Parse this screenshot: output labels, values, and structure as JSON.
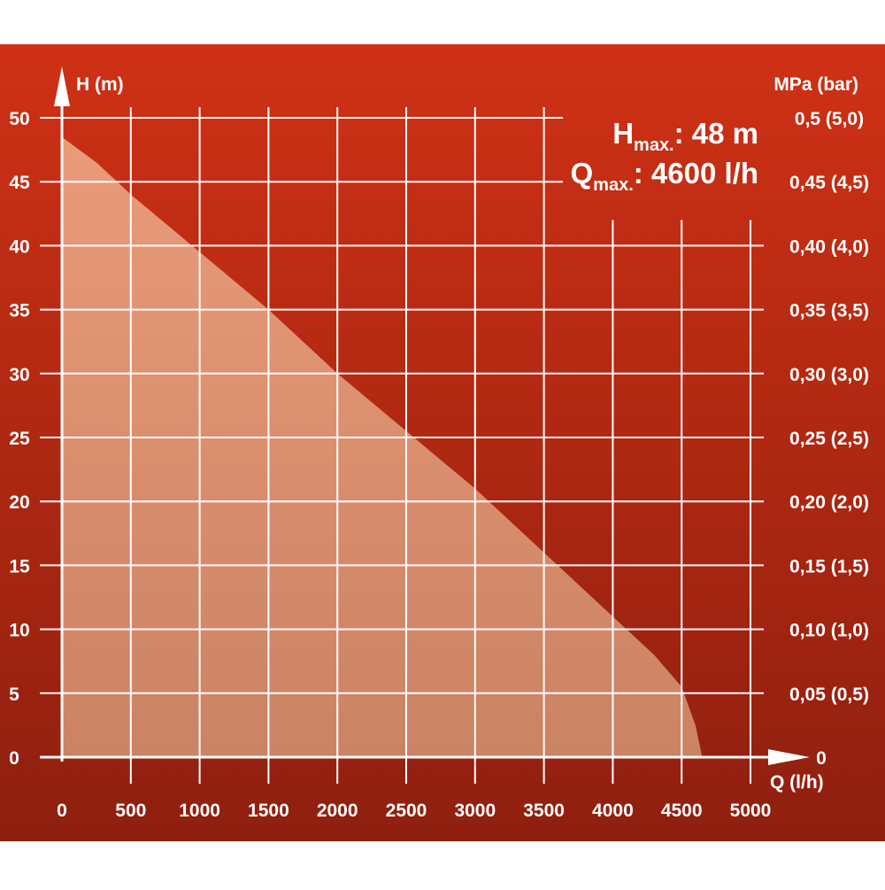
{
  "chart_data": {
    "type": "area",
    "title": "",
    "xlabel": "Q (l/h)",
    "ylabel": "H (m)",
    "y2label": "MPa (bar)",
    "xlim": [
      0,
      5000
    ],
    "ylim": [
      0,
      50
    ],
    "grid": true,
    "x_ticks": [
      "0",
      "500",
      "1000",
      "1500",
      "2000",
      "2500",
      "3000",
      "3500",
      "4000",
      "4500",
      "5000"
    ],
    "y_ticks": [
      "0",
      "5",
      "10",
      "15",
      "20",
      "25",
      "30",
      "35",
      "40",
      "45",
      "50"
    ],
    "y2_ticks": [
      "0",
      "0,05 (0,5)",
      "0,10 (1,0)",
      "0,15 (1,5)",
      "0,20 (2,0)",
      "0,25 (2,5)",
      "0,30 (3,0)",
      "0,35 (3,5)",
      "0,40 (4,0)",
      "0,45 (4,5)",
      "0,5 (5,0)"
    ],
    "series": [
      {
        "x": [
          0,
          250,
          500,
          1000,
          1500,
          2000,
          2500,
          3000,
          3500,
          4000,
          4300,
          4500,
          4600,
          4650
        ],
        "y": [
          48.5,
          46.5,
          44,
          39.5,
          35,
          30,
          25.5,
          21,
          16,
          11,
          8,
          5.5,
          2.5,
          0
        ]
      }
    ],
    "annotations": {
      "hmax_main": "H",
      "hmax_sub": "max.",
      "hmax_value": ": 48 m",
      "qmax_main": "Q",
      "qmax_sub": "max.",
      "qmax_value": ": 4600 l/h"
    },
    "colors": {
      "background_top": "#cf3115",
      "background_bottom": "#8f1f0f",
      "fill_top": "#eba17f",
      "fill_bottom": "#cd8868",
      "grid": "#ffffff"
    }
  }
}
